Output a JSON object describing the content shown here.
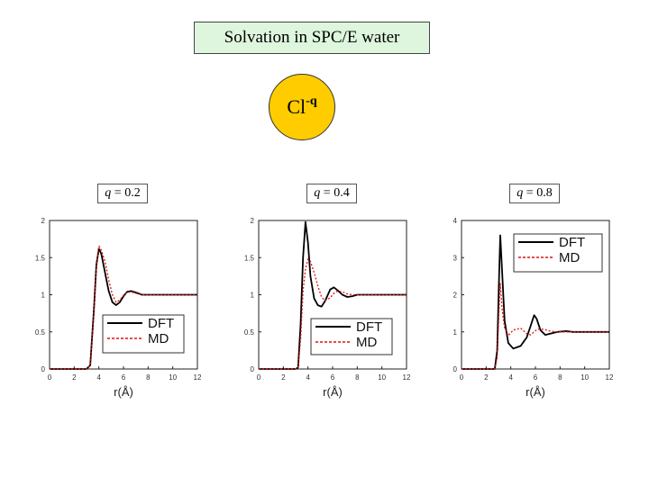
{
  "header": {
    "title": "Solvation in SPC/E water",
    "ion_symbol": "Cl",
    "ion_charge": "-q"
  },
  "colors": {
    "dft": "#000000",
    "md": "#dd1111",
    "title_bg": "#ddf6dd",
    "ion_fill": "#ffcc00"
  },
  "chart_data": [
    {
      "type": "line",
      "panel_label_var": "q",
      "panel_label_value": "= 0.2",
      "xlabel": "r(Å)",
      "ylabel": "",
      "xlim": [
        0,
        12
      ],
      "ylim": [
        0,
        2
      ],
      "x_ticks": [
        "0",
        "2",
        "4",
        "6",
        "8",
        "10",
        "12"
      ],
      "y_ticks": [
        "0",
        "0.5",
        "1",
        "1.5",
        "2"
      ],
      "y_tick_values": [
        0,
        0.5,
        1,
        1.5,
        2
      ],
      "legend_position": "lower-right",
      "series": [
        {
          "name": "DFT",
          "style": "solid",
          "x": [
            0,
            3.0,
            3.3,
            3.6,
            3.8,
            4.0,
            4.2,
            4.5,
            4.8,
            5.1,
            5.4,
            5.7,
            6.0,
            6.3,
            6.6,
            7.0,
            7.5,
            8.0,
            9.0,
            10.0,
            11.0,
            12.0
          ],
          "y": [
            0,
            0,
            0.05,
            0.8,
            1.4,
            1.62,
            1.55,
            1.3,
            1.05,
            0.9,
            0.86,
            0.9,
            0.98,
            1.04,
            1.05,
            1.03,
            1.0,
            1.0,
            1.0,
            1.0,
            1.0,
            1.0
          ]
        },
        {
          "name": "MD",
          "style": "dashed",
          "x": [
            0,
            3.0,
            3.3,
            3.6,
            3.8,
            4.0,
            4.2,
            4.5,
            4.8,
            5.1,
            5.4,
            5.7,
            6.0,
            6.3,
            6.6,
            7.0,
            7.5,
            8.0,
            9.0,
            10.0,
            11.0,
            12.0
          ],
          "y": [
            0,
            0,
            0.05,
            0.75,
            1.35,
            1.66,
            1.6,
            1.45,
            1.2,
            1.0,
            0.9,
            0.93,
            0.99,
            1.03,
            1.04,
            1.02,
            1.0,
            1.0,
            1.0,
            1.0,
            1.0,
            1.0
          ]
        }
      ]
    },
    {
      "type": "line",
      "panel_label_var": "q",
      "panel_label_value": "= 0.4",
      "xlabel": "r(Å)",
      "ylabel": "",
      "xlim": [
        0,
        12
      ],
      "ylim": [
        0,
        2
      ],
      "x_ticks": [
        "0",
        "2",
        "4",
        "6",
        "8",
        "10",
        "12"
      ],
      "y_ticks": [
        "0",
        "0.5",
        "1",
        "1.5",
        "2"
      ],
      "y_tick_values": [
        0,
        0.5,
        1,
        1.5,
        2
      ],
      "legend_position": "lower-right",
      "series": [
        {
          "name": "DFT",
          "style": "solid",
          "x": [
            0,
            3.0,
            3.2,
            3.4,
            3.6,
            3.8,
            4.0,
            4.2,
            4.5,
            4.8,
            5.1,
            5.4,
            5.8,
            6.1,
            6.4,
            6.8,
            7.2,
            7.6,
            8.0,
            9.0,
            10.0,
            11.0,
            12.0
          ],
          "y": [
            0,
            0,
            0.02,
            0.6,
            1.5,
            1.98,
            1.7,
            1.25,
            0.95,
            0.86,
            0.84,
            0.92,
            1.07,
            1.1,
            1.06,
            1.0,
            0.97,
            0.98,
            1.0,
            1.0,
            1.0,
            1.0,
            1.0
          ]
        },
        {
          "name": "MD",
          "style": "dashed",
          "x": [
            0,
            3.0,
            3.2,
            3.4,
            3.6,
            3.8,
            4.0,
            4.2,
            4.5,
            4.8,
            5.1,
            5.4,
            5.8,
            6.1,
            6.4,
            6.8,
            7.2,
            7.6,
            8.0,
            9.0,
            10.0,
            11.0,
            12.0
          ],
          "y": [
            0,
            0,
            0.02,
            0.4,
            1.05,
            1.35,
            1.48,
            1.45,
            1.3,
            1.12,
            0.97,
            0.92,
            0.96,
            1.02,
            1.05,
            1.04,
            1.01,
            1.0,
            1.0,
            1.0,
            1.0,
            1.0,
            1.0
          ]
        }
      ]
    },
    {
      "type": "line",
      "panel_label_var": "q",
      "panel_label_value": "= 0.8",
      "xlabel": "r(Å)",
      "ylabel": "",
      "xlim": [
        0,
        12
      ],
      "ylim": [
        0,
        4
      ],
      "x_ticks": [
        "0",
        "2",
        "4",
        "6",
        "8",
        "10",
        "12"
      ],
      "y_ticks": [
        "0",
        "1",
        "2",
        "3",
        "4"
      ],
      "y_tick_values": [
        0,
        1,
        2,
        3,
        4
      ],
      "legend_position": "upper-right",
      "series": [
        {
          "name": "DFT",
          "style": "solid",
          "x": [
            0,
            2.7,
            2.9,
            3.05,
            3.15,
            3.3,
            3.5,
            3.8,
            4.2,
            4.8,
            5.3,
            5.6,
            5.9,
            6.1,
            6.4,
            6.8,
            7.2,
            7.8,
            8.5,
            9.0,
            10.0,
            11.0,
            12.0
          ],
          "y": [
            0,
            0,
            0.5,
            2.5,
            3.6,
            2.6,
            1.3,
            0.7,
            0.55,
            0.62,
            0.85,
            1.15,
            1.45,
            1.35,
            1.05,
            0.92,
            0.95,
            1.0,
            1.02,
            1.0,
            1.0,
            1.0,
            1.0
          ]
        },
        {
          "name": "MD",
          "style": "dashed",
          "x": [
            0,
            2.7,
            2.9,
            3.05,
            3.15,
            3.3,
            3.5,
            3.8,
            4.2,
            4.8,
            5.3,
            5.6,
            5.9,
            6.1,
            6.4,
            6.8,
            7.2,
            7.8,
            8.5,
            9.0,
            10.0,
            11.0,
            12.0
          ],
          "y": [
            0,
            0,
            0.3,
            1.6,
            2.3,
            1.6,
            1.1,
            0.9,
            1.05,
            1.1,
            0.95,
            0.92,
            1.0,
            1.06,
            1.08,
            1.06,
            1.02,
            1.0,
            1.0,
            1.0,
            1.0,
            1.0,
            1.0
          ]
        }
      ]
    }
  ]
}
